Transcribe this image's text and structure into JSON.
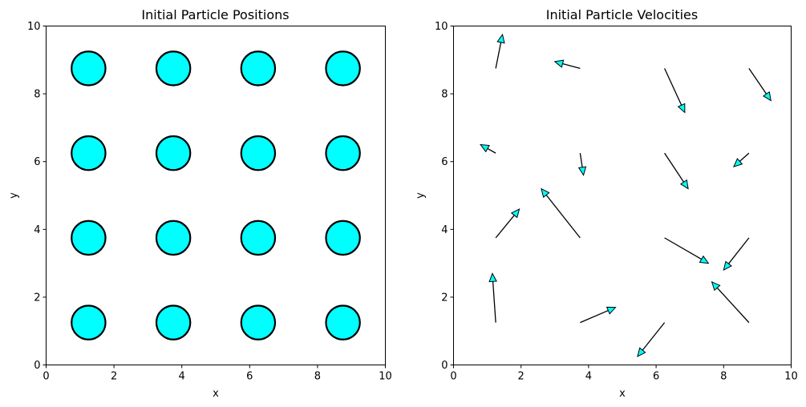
{
  "chart_data": [
    {
      "type": "scatter",
      "title": "Initial Particle Positions",
      "xlabel": "x",
      "ylabel": "y",
      "xlim": [
        0,
        10
      ],
      "ylim": [
        0,
        10
      ],
      "xticks": [
        "0",
        "2",
        "4",
        "6",
        "8",
        "10"
      ],
      "yticks": [
        "0",
        "2",
        "4",
        "6",
        "8",
        "10"
      ],
      "grid": false,
      "marker_color": "#00ffff",
      "marker_edge_color": "#000000",
      "particle_radius": 0.5,
      "points": [
        {
          "x": 1.25,
          "y": 1.25
        },
        {
          "x": 3.75,
          "y": 1.25
        },
        {
          "x": 6.25,
          "y": 1.25
        },
        {
          "x": 8.75,
          "y": 1.25
        },
        {
          "x": 1.25,
          "y": 3.75
        },
        {
          "x": 3.75,
          "y": 3.75
        },
        {
          "x": 6.25,
          "y": 3.75
        },
        {
          "x": 8.75,
          "y": 3.75
        },
        {
          "x": 1.25,
          "y": 6.25
        },
        {
          "x": 3.75,
          "y": 6.25
        },
        {
          "x": 6.25,
          "y": 6.25
        },
        {
          "x": 8.75,
          "y": 6.25
        },
        {
          "x": 1.25,
          "y": 8.75
        },
        {
          "x": 3.75,
          "y": 8.75
        },
        {
          "x": 6.25,
          "y": 8.75
        },
        {
          "x": 8.75,
          "y": 8.75
        }
      ]
    },
    {
      "type": "quiver",
      "title": "Initial Particle Velocities",
      "xlabel": "x",
      "ylabel": "y",
      "xlim": [
        0,
        10
      ],
      "ylim": [
        0,
        10
      ],
      "xticks": [
        "0",
        "2",
        "4",
        "6",
        "8",
        "10"
      ],
      "yticks": [
        "0",
        "2",
        "4",
        "6",
        "8",
        "10"
      ],
      "grid": false,
      "arrow_color": "#00ffff",
      "arrow_edge_color": "#000000",
      "arrows": [
        {
          "x": 1.25,
          "y": 1.25,
          "dx": -0.1,
          "dy": 1.45
        },
        {
          "x": 3.75,
          "y": 1.25,
          "dx": 1.05,
          "dy": 0.45
        },
        {
          "x": 6.25,
          "y": 1.25,
          "dx": -0.8,
          "dy": -1.0
        },
        {
          "x": 8.75,
          "y": 1.25,
          "dx": -1.1,
          "dy": 1.2
        },
        {
          "x": 1.25,
          "y": 3.75,
          "dx": 0.7,
          "dy": 0.85
        },
        {
          "x": 3.75,
          "y": 3.75,
          "dx": -1.15,
          "dy": 1.45
        },
        {
          "x": 6.25,
          "y": 3.75,
          "dx": 1.3,
          "dy": -0.75
        },
        {
          "x": 8.75,
          "y": 3.75,
          "dx": -0.75,
          "dy": -0.95
        },
        {
          "x": 1.25,
          "y": 6.25,
          "dx": -0.45,
          "dy": 0.25
        },
        {
          "x": 3.75,
          "y": 6.25,
          "dx": 0.1,
          "dy": -0.65
        },
        {
          "x": 6.25,
          "y": 6.25,
          "dx": 0.7,
          "dy": -1.05
        },
        {
          "x": 8.75,
          "y": 6.25,
          "dx": -0.45,
          "dy": -0.4
        },
        {
          "x": 1.25,
          "y": 8.75,
          "dx": 0.2,
          "dy": 1.0
        },
        {
          "x": 3.75,
          "y": 8.75,
          "dx": -0.75,
          "dy": 0.2
        },
        {
          "x": 6.25,
          "y": 8.75,
          "dx": 0.6,
          "dy": -1.3
        },
        {
          "x": 8.75,
          "y": 8.75,
          "dx": 0.65,
          "dy": -0.95
        }
      ]
    }
  ]
}
